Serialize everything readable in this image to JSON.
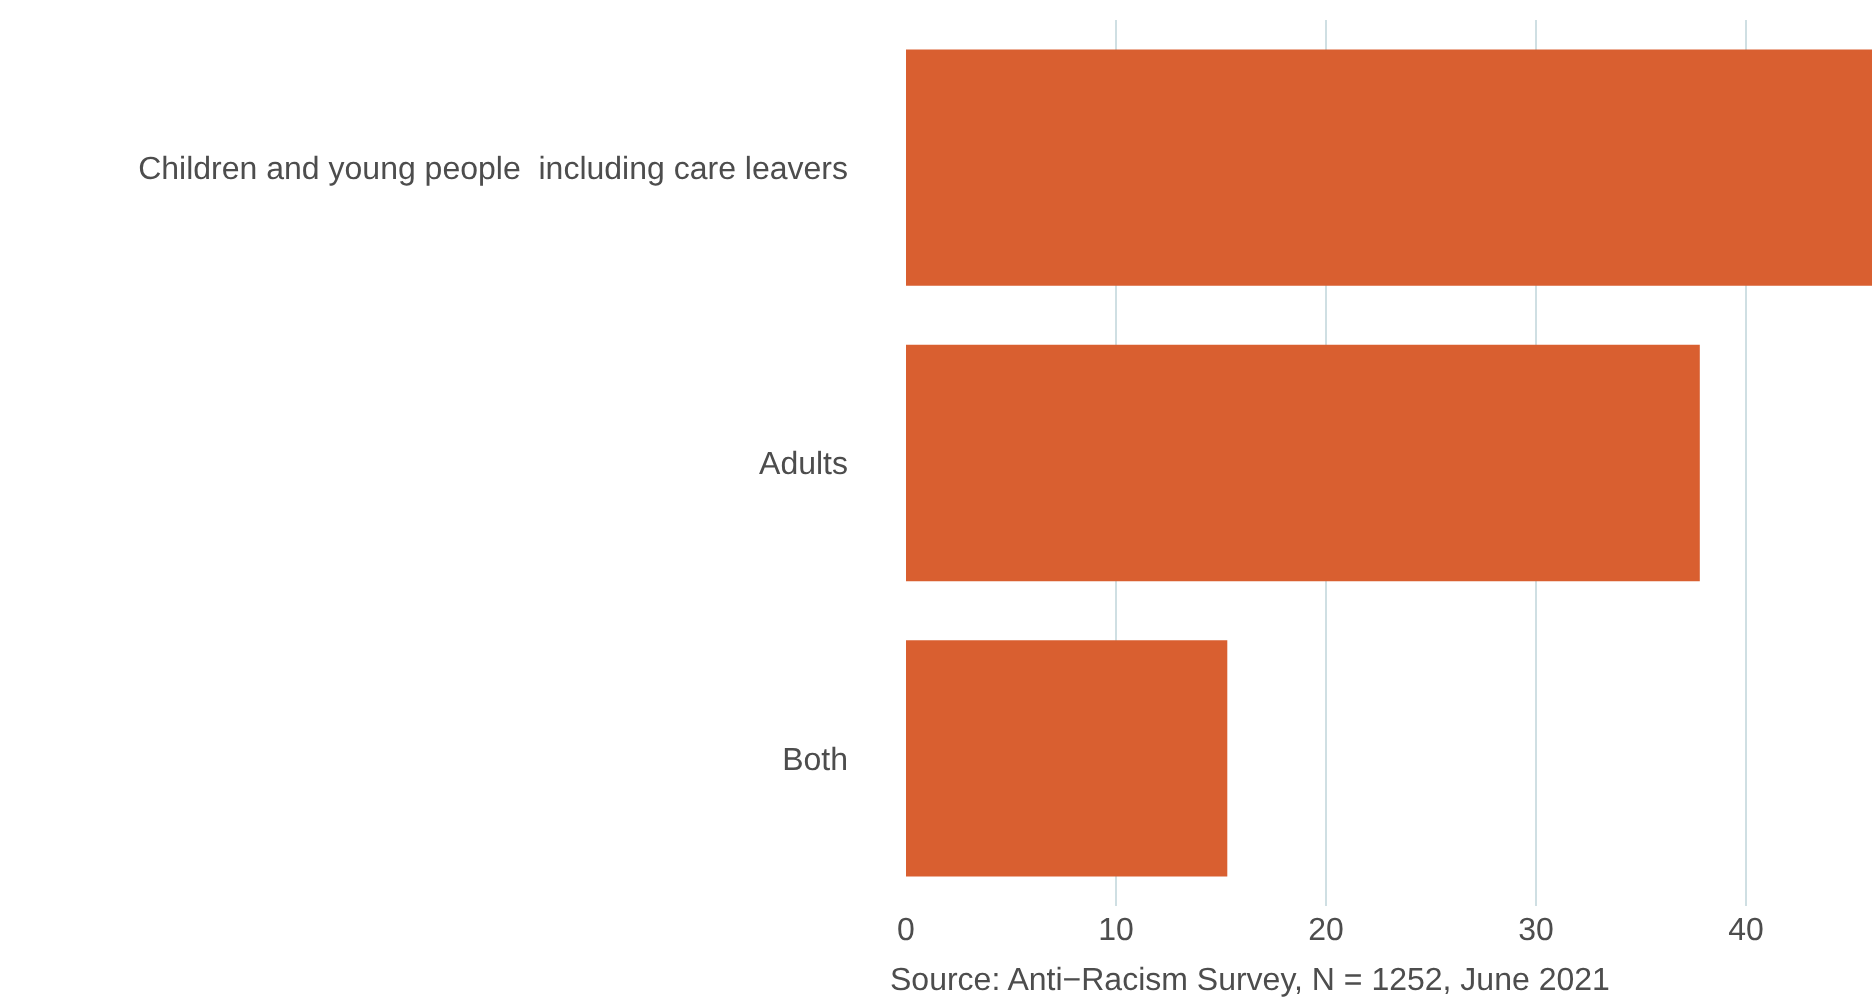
{
  "chart_data": {
    "type": "bar",
    "orientation": "horizontal",
    "categories": [
      "Children and young people  including care leavers",
      "Adults",
      "Both"
    ],
    "values": [
      46,
      37.8,
      15.3
    ],
    "color": "#d95f30",
    "xlim": [
      0,
      46
    ],
    "xticks": [
      0,
      10,
      20,
      30,
      40
    ],
    "grid": "x",
    "annotations": [
      "Source: Anti−Racism Survey, N = 1252, June 2021"
    ]
  }
}
